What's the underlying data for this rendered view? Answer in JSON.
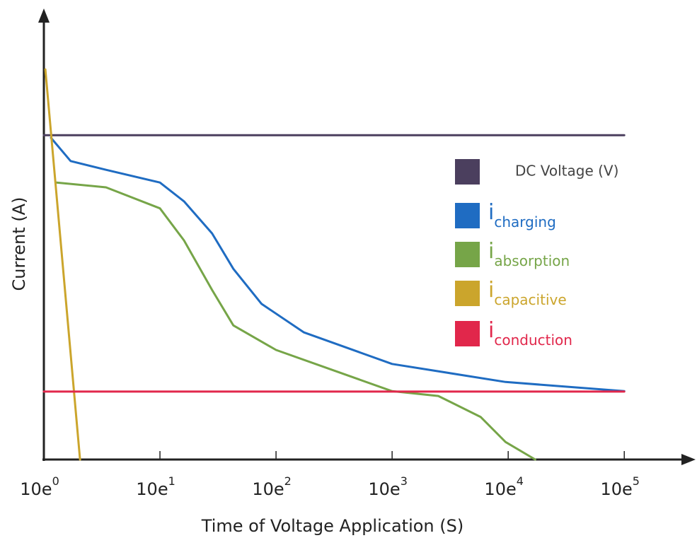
{
  "chart_data": {
    "type": "line",
    "y_label": "Current (A)",
    "x_label": "Time of Voltage Application (S)",
    "x_scale": "log",
    "xlim": [
      1,
      400000
    ],
    "ylim": [
      0,
      100
    ],
    "xticks": [
      {
        "value": 1,
        "label": "10e",
        "exponent": "0"
      },
      {
        "value": 10,
        "label": "10e",
        "exponent": "1"
      },
      {
        "value": 100,
        "label": "10e",
        "exponent": "2"
      },
      {
        "value": 1000,
        "label": "10e",
        "exponent": "3"
      },
      {
        "value": 10000,
        "label": "10e",
        "exponent": "4"
      },
      {
        "value": 100000,
        "label": "10e",
        "exponent": "5"
      }
    ],
    "series": [
      {
        "name": "DC Voltage (V)",
        "color": "#4b3f5e",
        "text_color": "#444444",
        "x": [
          1,
          100000
        ],
        "values": [
          74,
          74
        ]
      },
      {
        "name": "i",
        "subscript": "charging",
        "color": "#1f6cc2",
        "text_color": "#1f6cc2",
        "x": [
          1.15,
          1.7,
          3.43,
          10,
          16.1,
          28.1,
          42.9,
          75.1,
          174,
          1000,
          9484,
          100000
        ],
        "values": [
          73.4,
          68.1,
          66.1,
          63.2,
          58.9,
          51.6,
          43.5,
          35.5,
          29.0,
          21.8,
          17.7,
          15.6
        ]
      },
      {
        "name": "i",
        "subscript": "absorption",
        "color": "#76a548",
        "text_color": "#76a548",
        "x": [
          1.29,
          3.43,
          10,
          16.1,
          28.1,
          42.9,
          100,
          1000,
          2500,
          5800,
          9484,
          17100
        ],
        "values": [
          63.2,
          62.1,
          57.3,
          50.0,
          38.7,
          30.6,
          25.0,
          15.6,
          14.5,
          9.7,
          4.0,
          0
        ]
      },
      {
        "name": "i",
        "subscript": "capacitive",
        "color": "#cba52c",
        "text_color": "#cba52c",
        "x": [
          1.03,
          2.05
        ],
        "values": [
          89.0,
          0
        ]
      },
      {
        "name": "i",
        "subscript": "conduction",
        "color": "#e1274b",
        "text_color": "#e1274b",
        "x": [
          1,
          100000
        ],
        "values": [
          15.5,
          15.5
        ]
      }
    ]
  }
}
